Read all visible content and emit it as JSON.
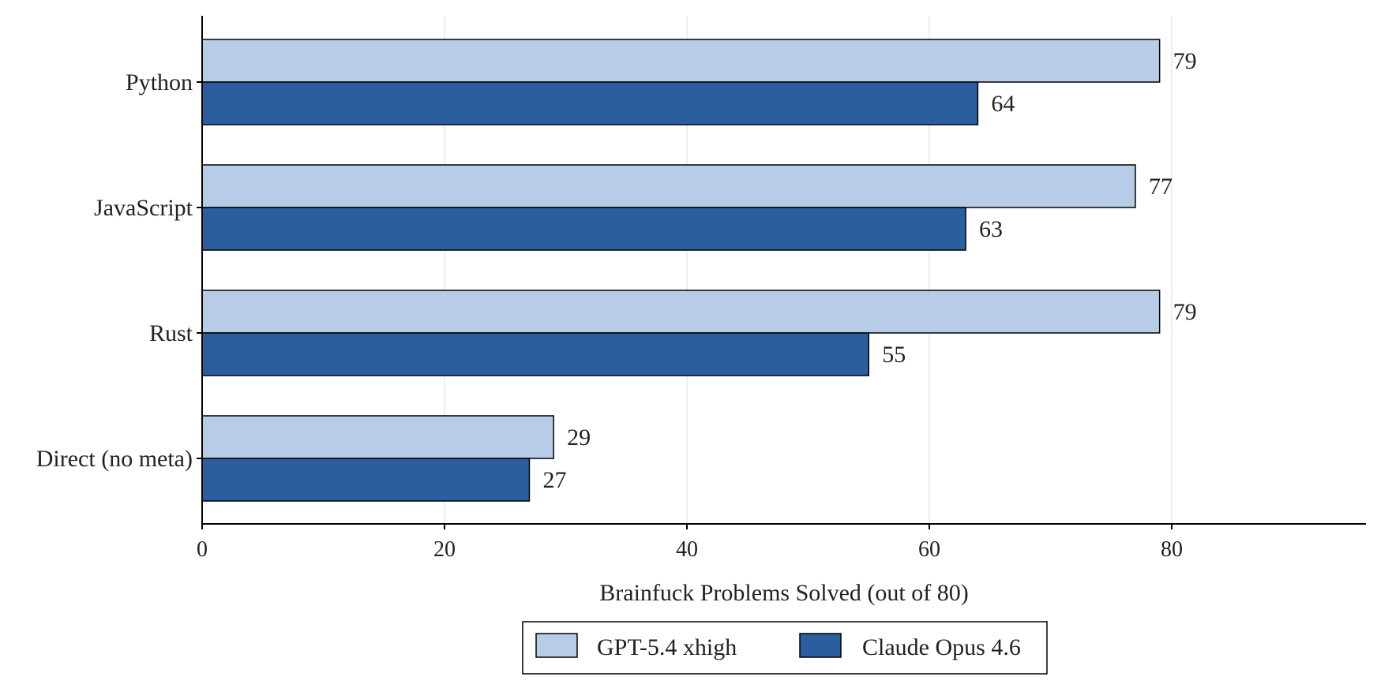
{
  "chart_data": {
    "type": "bar",
    "orientation": "horizontal",
    "categories": [
      "Python",
      "JavaScript",
      "Rust",
      "Direct (no meta)"
    ],
    "series": [
      {
        "name": "GPT-5.4 xhigh",
        "values": [
          79,
          77,
          79,
          29
        ],
        "color": "#b7cde7"
      },
      {
        "name": "Claude Opus 4.6",
        "values": [
          64,
          63,
          55,
          27
        ],
        "color": "#2b5e9f"
      }
    ],
    "title": "",
    "xlabel": "Brainfuck Problems Solved (out of 80)",
    "ylabel": "",
    "xlim": [
      0,
      96
    ],
    "xticks": [
      0,
      20,
      40,
      60,
      80
    ],
    "grid": "vertical",
    "legend_position": "bottom-center"
  }
}
